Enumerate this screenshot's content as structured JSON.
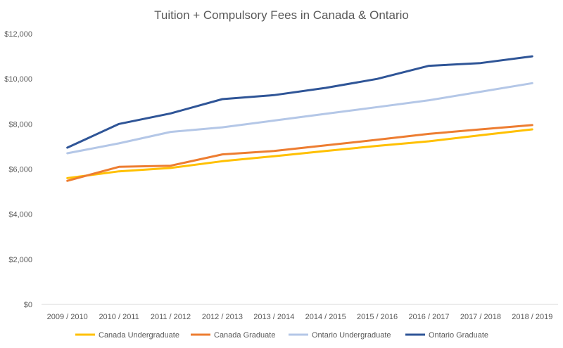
{
  "chart_data": {
    "type": "line",
    "title": "Tuition + Compulsory Fees in Canada & Ontario",
    "categories": [
      "2009 / 2010",
      "2010 / 2011",
      "2011 / 2012",
      "2012 / 2013",
      "2013 / 2014",
      "2014 / 2015",
      "2015 / 2016",
      "2016 / 2017",
      "2017 / 2018",
      "2018 / 2019"
    ],
    "y_ticks": [
      "$0",
      "$2,000",
      "$4,000",
      "$6,000",
      "$8,000",
      "$10,000",
      "$12,000"
    ],
    "ylim": [
      0,
      12000
    ],
    "grid": false,
    "legend_position": "bottom",
    "series": [
      {
        "name": "Canada Undergraduate",
        "color": "#FFC000",
        "values": [
          5600,
          5900,
          6050,
          6350,
          6570,
          6800,
          7030,
          7230,
          7500,
          7760
        ]
      },
      {
        "name": "Canada Graduate",
        "color": "#ED7D31",
        "values": [
          5480,
          6100,
          6150,
          6650,
          6800,
          7050,
          7300,
          7560,
          7760,
          7950
        ]
      },
      {
        "name": "Ontario Undergraduate",
        "color": "#B4C7E7",
        "values": [
          6700,
          7140,
          7650,
          7850,
          8150,
          8450,
          8750,
          9050,
          9430,
          9810
        ]
      },
      {
        "name": "Ontario Graduate",
        "color": "#2F5597",
        "values": [
          6950,
          8000,
          8470,
          9100,
          9280,
          9600,
          10000,
          10580,
          10700,
          11000
        ]
      }
    ]
  }
}
